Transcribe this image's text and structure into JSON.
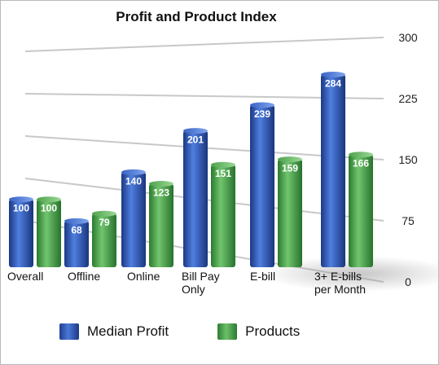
{
  "chart_data": {
    "type": "bar",
    "title": "Profit and Product Index",
    "categories": [
      "Overall",
      "Offline",
      "Online",
      "Bill Pay Only",
      "E-bill",
      "3+ E-bills per Month"
    ],
    "category_lines": [
      [
        "Overall"
      ],
      [
        "Offline"
      ],
      [
        "Online"
      ],
      [
        "Bill Pay",
        "Only"
      ],
      [
        "E-bill"
      ],
      [
        "3+ E-bills",
        "per Month"
      ]
    ],
    "series": [
      {
        "name": "Median Profit",
        "values": [
          100,
          68,
          140,
          201,
          239,
          284
        ],
        "color": "#2f56b8"
      },
      {
        "name": "Products",
        "values": [
          100,
          79,
          123,
          151,
          159,
          166
        ],
        "color": "#4aa047"
      }
    ],
    "ylim": [
      0,
      300
    ],
    "yticks": [
      "0",
      "75",
      "150",
      "225",
      "300"
    ],
    "ytick_values": [
      0,
      75,
      150,
      225,
      300
    ],
    "grid": true,
    "legend_position": "bottom"
  },
  "colors": {
    "blue_dark": "#1c3883",
    "blue_light": "#4f7fe0",
    "green_dark": "#2b7a30",
    "green_light": "#72c56f",
    "grid": "#c8c8c8"
  }
}
